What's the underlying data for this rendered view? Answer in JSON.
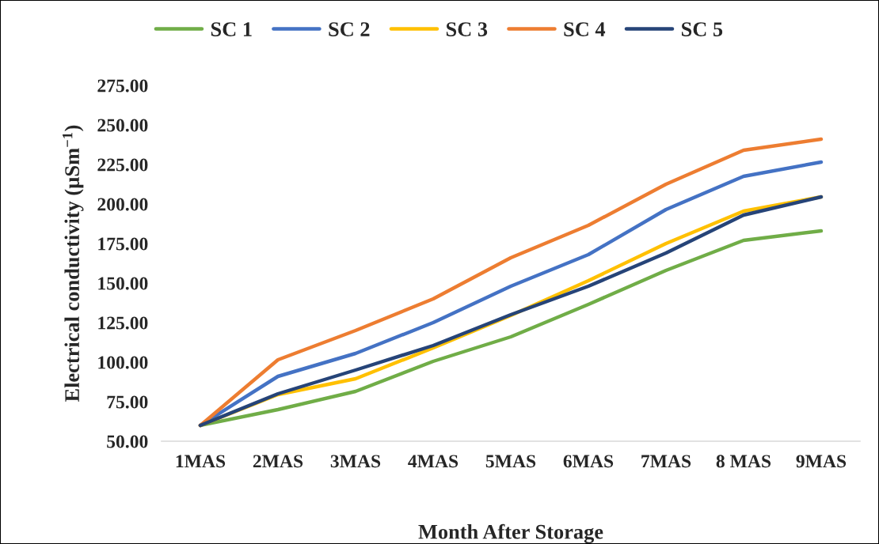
{
  "chart_data": {
    "type": "line",
    "xlabel": "Month After Storage",
    "ylabel": "Electrical conductivity (µSm$^{−1}$)",
    "categories": [
      "1MAS",
      "2MAS",
      "3MAS",
      "4MAS",
      "5MAS",
      "6MAS",
      "7MAS",
      "8 MAS",
      "9MAS"
    ],
    "series": [
      {
        "name": "SC 1",
        "color": "#70ad47",
        "values": [
          60,
          70,
          81.5,
          100.5,
          116,
          136.5,
          158,
          177,
          183
        ]
      },
      {
        "name": "SC 2",
        "color": "#4472c4",
        "values": [
          60,
          91,
          105.5,
          125,
          148,
          168,
          196.5,
          217.5,
          226.5
        ]
      },
      {
        "name": "SC 3",
        "color": "#ffc000",
        "values": [
          60,
          79.5,
          89.5,
          109,
          129.5,
          151.5,
          175,
          195.5,
          204.5
        ]
      },
      {
        "name": "SC 4",
        "color": "#ed7d31",
        "values": [
          60,
          101.5,
          120,
          140,
          166,
          186.5,
          212.5,
          234,
          241
        ]
      },
      {
        "name": "SC 5",
        "color": "#264478",
        "values": [
          60,
          80,
          95,
          110.5,
          130,
          148,
          169,
          193,
          204.5
        ]
      }
    ],
    "ylim": [
      50,
      275
    ],
    "yticks": [
      {
        "value": 50,
        "label": "50.00"
      },
      {
        "value": 75,
        "label": "75.00"
      },
      {
        "value": 100,
        "label": "100.00"
      },
      {
        "value": 125,
        "label": "125.00"
      },
      {
        "value": 150,
        "label": "150.00"
      },
      {
        "value": 175,
        "label": "175.00"
      },
      {
        "value": 200,
        "label": "200.00"
      },
      {
        "value": 225,
        "label": "225.00"
      },
      {
        "value": 250,
        "label": "250.00"
      },
      {
        "value": 275,
        "label": "275.00"
      }
    ],
    "grid": false,
    "legend": "top",
    "marker": "none",
    "line_style": "solid"
  }
}
